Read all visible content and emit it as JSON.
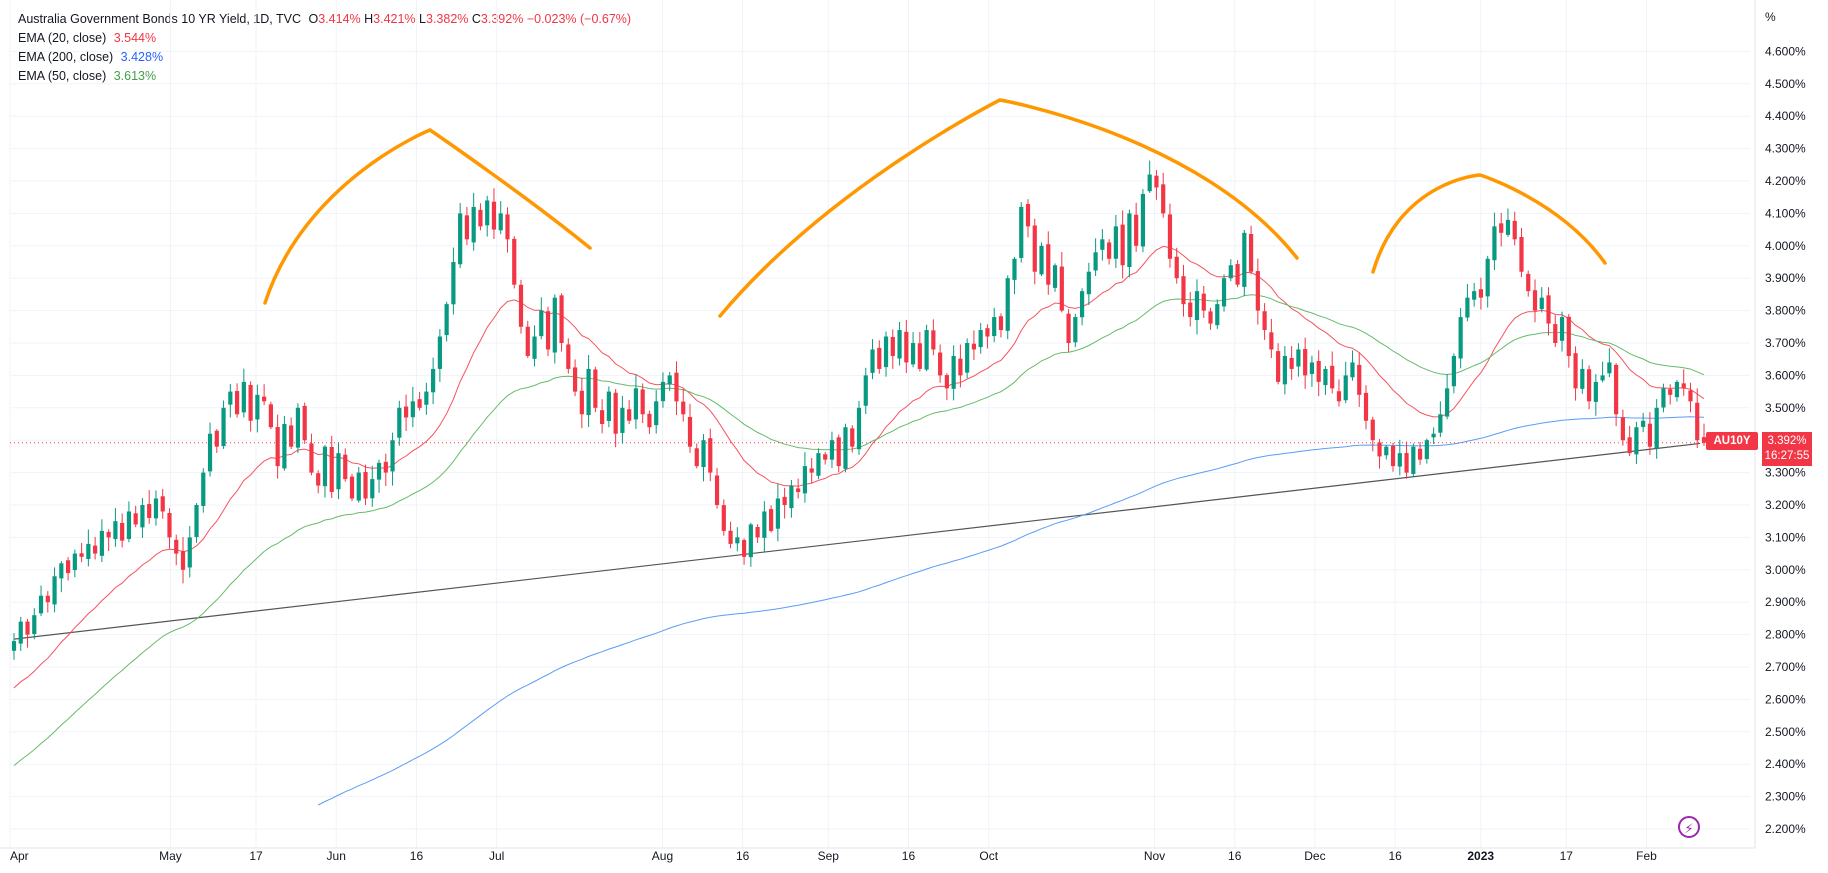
{
  "legend": {
    "title": "Australia Government Bonds 10 YR Yield, 1D, TVC",
    "ohlc": [
      {
        "k": "O",
        "v": "3.414%"
      },
      {
        "k": "H",
        "v": "3.421%"
      },
      {
        "k": "L",
        "v": "3.382%"
      },
      {
        "k": "C",
        "v": "3.392%"
      }
    ],
    "change": "−0.023% (−0.67%)",
    "indicators": [
      {
        "name": "EMA (20, close)",
        "value": "3.544%",
        "color": "#f23645"
      },
      {
        "name": "EMA (200, close)",
        "value": "3.428%",
        "color": "#2962ff"
      },
      {
        "name": "EMA (50, close)",
        "value": "3.613%",
        "color": "#43a047"
      }
    ]
  },
  "price_scale": {
    "unit": "%"
  },
  "last_price": {
    "symbol": "AU10Y",
    "value": "3.392%",
    "countdown": "16:27:55"
  },
  "colors": {
    "up": "#089981",
    "down": "#f23645",
    "ema20": "#f7525f",
    "ema50": "#66bb6a",
    "ema200": "#5b9cf6",
    "trendline": "#555555",
    "arcs": "#ff9800",
    "grid": "#f0f3fa"
  },
  "chart_data": {
    "type": "candlestick",
    "title": "Australia Government Bonds 10 YR Yield, 1D, TVC",
    "ylim": [
      2.15,
      4.68
    ],
    "y_ticks": [
      "4.600%",
      "4.500%",
      "4.400%",
      "4.300%",
      "4.200%",
      "4.100%",
      "4.000%",
      "3.900%",
      "3.800%",
      "3.700%",
      "3.600%",
      "3.500%",
      "3.400%",
      "3.300%",
      "3.200%",
      "3.100%",
      "3.000%",
      "2.900%",
      "2.800%",
      "2.700%",
      "2.600%",
      "2.500%",
      "2.400%",
      "2.300%",
      "2.200%"
    ],
    "x_ticks": [
      {
        "label": "Apr",
        "day": 0
      },
      {
        "label": "May",
        "day": 30
      },
      {
        "label": "17",
        "day": 46
      },
      {
        "label": "Jun",
        "day": 61
      },
      {
        "label": "16",
        "day": 76
      },
      {
        "label": "Jul",
        "day": 91
      },
      {
        "label": "Aug",
        "day": 122
      },
      {
        "label": "16",
        "day": 137
      },
      {
        "label": "Sep",
        "day": 153
      },
      {
        "label": "16",
        "day": 168
      },
      {
        "label": "Oct",
        "day": 183
      },
      {
        "label": "Nov",
        "day": 214
      },
      {
        "label": "16",
        "day": 229
      },
      {
        "label": "Dec",
        "day": 244
      },
      {
        "label": "16",
        "day": 259
      },
      {
        "label": "2023",
        "day": 275,
        "bold": true
      },
      {
        "label": "17",
        "day": 291
      },
      {
        "label": "Feb",
        "day": 306
      }
    ],
    "x_range": [
      0,
      316
    ],
    "closes": [
      2.78,
      2.84,
      2.8,
      2.86,
      2.92,
      2.9,
      2.98,
      3.02,
      2.99,
      3.05,
      3.04,
      3.08,
      3.05,
      3.12,
      3.1,
      3.15,
      3.09,
      3.18,
      3.14,
      3.2,
      3.16,
      3.22,
      3.18,
      3.1,
      3.05,
      3.0,
      3.1,
      3.2,
      3.3,
      3.42,
      3.38,
      3.5,
      3.55,
      3.48,
      3.58,
      3.46,
      3.54,
      3.52,
      3.44,
      3.32,
      3.45,
      3.38,
      3.5,
      3.4,
      3.3,
      3.26,
      3.38,
      3.24,
      3.36,
      3.28,
      3.22,
      3.3,
      3.22,
      3.28,
      3.33,
      3.3,
      3.4,
      3.5,
      3.47,
      3.52,
      3.5,
      3.55,
      3.62,
      3.72,
      3.82,
      3.95,
      4.1,
      4.02,
      4.12,
      4.06,
      4.14,
      4.05,
      4.1,
      4.02,
      3.88,
      3.75,
      3.66,
      3.72,
      3.8,
      3.68,
      3.84,
      3.7,
      3.62,
      3.55,
      3.48,
      3.62,
      3.5,
      3.45,
      3.55,
      3.42,
      3.5,
      3.46,
      3.56,
      3.48,
      3.44,
      3.52,
      3.58,
      3.6,
      3.52,
      3.48,
      3.38,
      3.32,
      3.4,
      3.3,
      3.2,
      3.12,
      3.08,
      3.1,
      3.04,
      3.14,
      3.1,
      3.18,
      3.12,
      3.22,
      3.2,
      3.26,
      3.24,
      3.32,
      3.3,
      3.36,
      3.34,
      3.4,
      3.32,
      3.44,
      3.38,
      3.5,
      3.6,
      3.68,
      3.62,
      3.72,
      3.66,
      3.74,
      3.64,
      3.7,
      3.62,
      3.74,
      3.68,
      3.6,
      3.56,
      3.66,
      3.6,
      3.7,
      3.68,
      3.74,
      3.72,
      3.78,
      3.74,
      3.9,
      3.96,
      4.12,
      4.06,
      3.92,
      4.0,
      3.88,
      3.94,
      3.8,
      3.7,
      3.78,
      3.86,
      3.92,
      3.98,
      4.02,
      3.96,
      4.06,
      3.94,
      4.1,
      4.0,
      4.16,
      4.22,
      4.18,
      4.1,
      3.96,
      3.9,
      3.82,
      3.78,
      3.86,
      3.8,
      3.76,
      3.82,
      3.9,
      3.94,
      3.88,
      4.04,
      3.92,
      3.8,
      3.74,
      3.68,
      3.58,
      3.66,
      3.62,
      3.68,
      3.6,
      3.64,
      3.58,
      3.62,
      3.56,
      3.52,
      3.6,
      3.64,
      3.54,
      3.46,
      3.4,
      3.35,
      3.38,
      3.32,
      3.36,
      3.3,
      3.38,
      3.34,
      3.4,
      3.42,
      3.48,
      3.56,
      3.66,
      3.78,
      3.84,
      3.86,
      3.84,
      3.96,
      4.06,
      4.04,
      4.08,
      4.02,
      3.92,
      3.86,
      3.8,
      3.84,
      3.76,
      3.7,
      3.78,
      3.66,
      3.56,
      3.62,
      3.52,
      3.58,
      3.6,
      3.64,
      3.48,
      3.4,
      3.36,
      3.44,
      3.46,
      3.38,
      3.5,
      3.56,
      3.54,
      3.58,
      3.56,
      3.52,
      3.4,
      3.392
    ]
  }
}
